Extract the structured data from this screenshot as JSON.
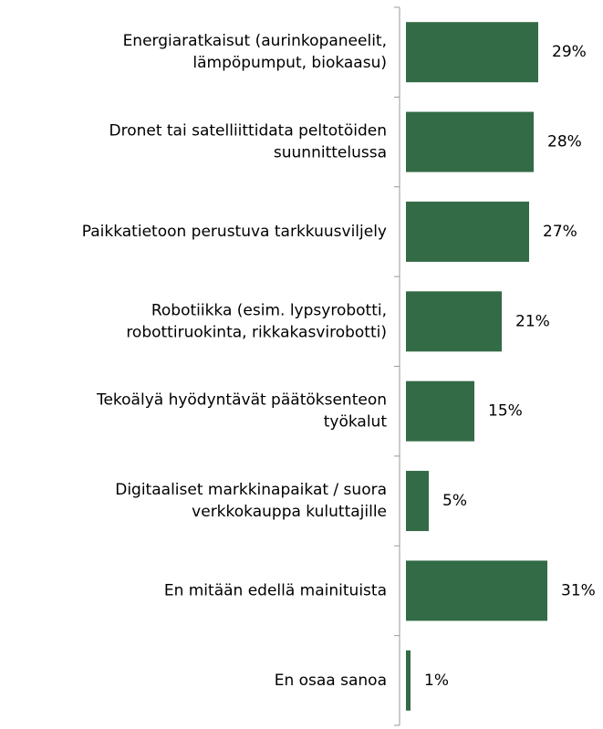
{
  "chart_data": {
    "type": "barh",
    "categories": [
      [
        "Energiaratkaisut (aurinkopaneelit,",
        "lämpöpumput, biokaasu)"
      ],
      [
        "Dronet tai satelliittidata peltotöiden",
        "suunnittelussa"
      ],
      [
        "Paikkatietoon perustuva tarkkuusviljely"
      ],
      [
        "Robotiikka (esim. lypsyrobotti,",
        "robottiruokinta, rikkakasvirobotti)"
      ],
      [
        "Tekoälyä hyödyntävät päätöksenteon",
        "työkalut"
      ],
      [
        "Digitaaliset markkinapaikat / suora",
        "verkkokauppa kuluttajille"
      ],
      [
        "En mitään edellä mainituista"
      ],
      [
        "En osaa sanoa"
      ]
    ],
    "values": [
      29,
      28,
      27,
      21,
      15,
      5,
      31,
      1
    ],
    "value_labels": [
      "29%",
      "28%",
      "27%",
      "21%",
      "15%",
      "5%",
      "31%",
      "1%"
    ],
    "color": "#336b46"
  }
}
